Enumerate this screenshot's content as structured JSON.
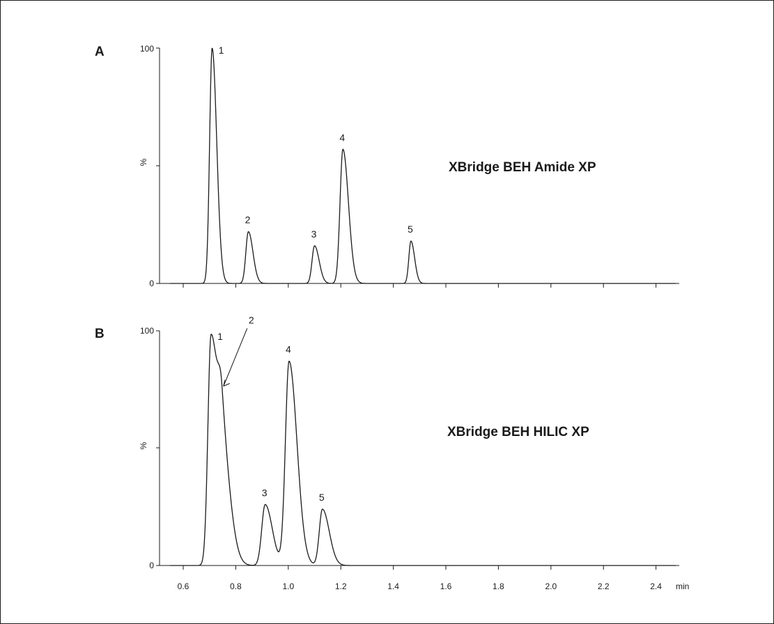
{
  "chart_data": [
    {
      "type": "line",
      "panel_label": "A",
      "column_label": "XBridge BEH Amide XP",
      "xlabel": "",
      "ylabel": "%",
      "xlim": [
        0.5,
        2.5
      ],
      "ylim": [
        0,
        100
      ],
      "y_ticks": [
        "100",
        "0"
      ],
      "y_mid_label": "%",
      "baseline_offset": 0,
      "peaks": [
        {
          "label": "1",
          "rt": 0.71,
          "height": 100,
          "sigma": 0.0095,
          "tail": 0.008
        },
        {
          "label": "2",
          "rt": 0.848,
          "height": 22,
          "sigma": 0.0095,
          "tail": 0.008
        },
        {
          "label": "3",
          "rt": 1.1,
          "height": 16,
          "sigma": 0.0095,
          "tail": 0.008
        },
        {
          "label": "4",
          "rt": 1.208,
          "height": 57,
          "sigma": 0.011,
          "tail": 0.01
        },
        {
          "label": "5",
          "rt": 1.467,
          "height": 18,
          "sigma": 0.008,
          "tail": 0.006
        }
      ]
    },
    {
      "type": "line",
      "panel_label": "B",
      "column_label": "XBridge BEH HILIC XP",
      "xlabel": "min",
      "ylabel": "%",
      "xlim": [
        0.5,
        2.5
      ],
      "ylim": [
        0,
        100
      ],
      "y_ticks": [
        "100",
        "0"
      ],
      "y_mid_label": "%",
      "x_ticks": [
        0.6,
        0.8,
        1.0,
        1.2,
        1.4,
        1.6,
        1.8,
        2.0,
        2.2,
        2.4
      ],
      "x_tick_labels": [
        "0.6",
        "0.8",
        "1.0",
        "1.2",
        "1.4",
        "1.6",
        "1.8",
        "2.0",
        "2.2",
        "2.4"
      ],
      "x_unit": "min",
      "peaks": [
        {
          "label": "1",
          "rt": 0.706,
          "height": 98,
          "sigma": 0.012,
          "tail": 0.016
        },
        {
          "label": "2",
          "rt": 0.748,
          "height": 44,
          "sigma": 0.014,
          "tail": 0.018,
          "arrow": true
        },
        {
          "label": "3",
          "rt": 0.912,
          "height": 26,
          "sigma": 0.013,
          "tail": 0.014
        },
        {
          "label": "4",
          "rt": 1.003,
          "height": 87,
          "sigma": 0.014,
          "tail": 0.016
        },
        {
          "label": "5",
          "rt": 1.13,
          "height": 24,
          "sigma": 0.012,
          "tail": 0.014
        }
      ]
    }
  ]
}
